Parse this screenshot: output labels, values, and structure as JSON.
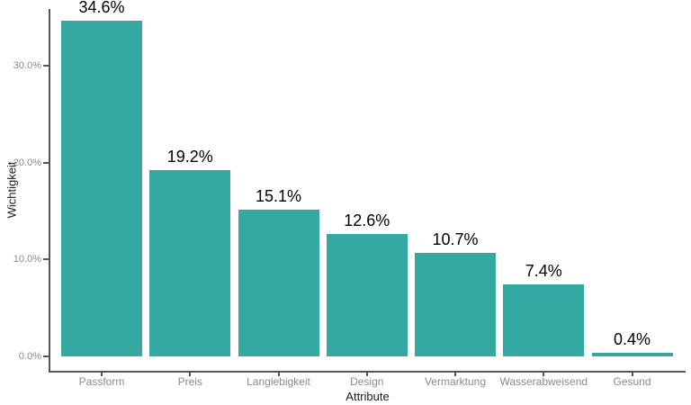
{
  "chart_data": {
    "type": "bar",
    "title": "",
    "xlabel": "Attribute",
    "ylabel": "Wichtigkeit",
    "categories": [
      "Passform",
      "Preis",
      "Langlebigkeit",
      "Design",
      "Vermarktung",
      "Wasserabweisend",
      "Gesund"
    ],
    "values": [
      34.6,
      19.2,
      15.1,
      12.6,
      10.7,
      7.4,
      0.4
    ],
    "value_labels": [
      "34.6%",
      "19.2%",
      "15.1%",
      "12.6%",
      "10.7%",
      "7.4%",
      "0.4%"
    ],
    "y_ticks": [
      {
        "value": 0,
        "label": "0.0%"
      },
      {
        "value": 10,
        "label": "10.0%"
      },
      {
        "value": 20,
        "label": "20.0%"
      },
      {
        "value": 30,
        "label": "30.0%"
      }
    ],
    "ylim": [
      0,
      35.9
    ],
    "grid": false,
    "legend": "none",
    "colors": {
      "bar_fill": "#34A9A1",
      "axis_line": "#555555",
      "tick_mark": "#555555",
      "tick_label": "#8a8a8a",
      "axis_title": "#1a1a1a",
      "value_label": "#000000",
      "background": "#ffffff"
    }
  }
}
